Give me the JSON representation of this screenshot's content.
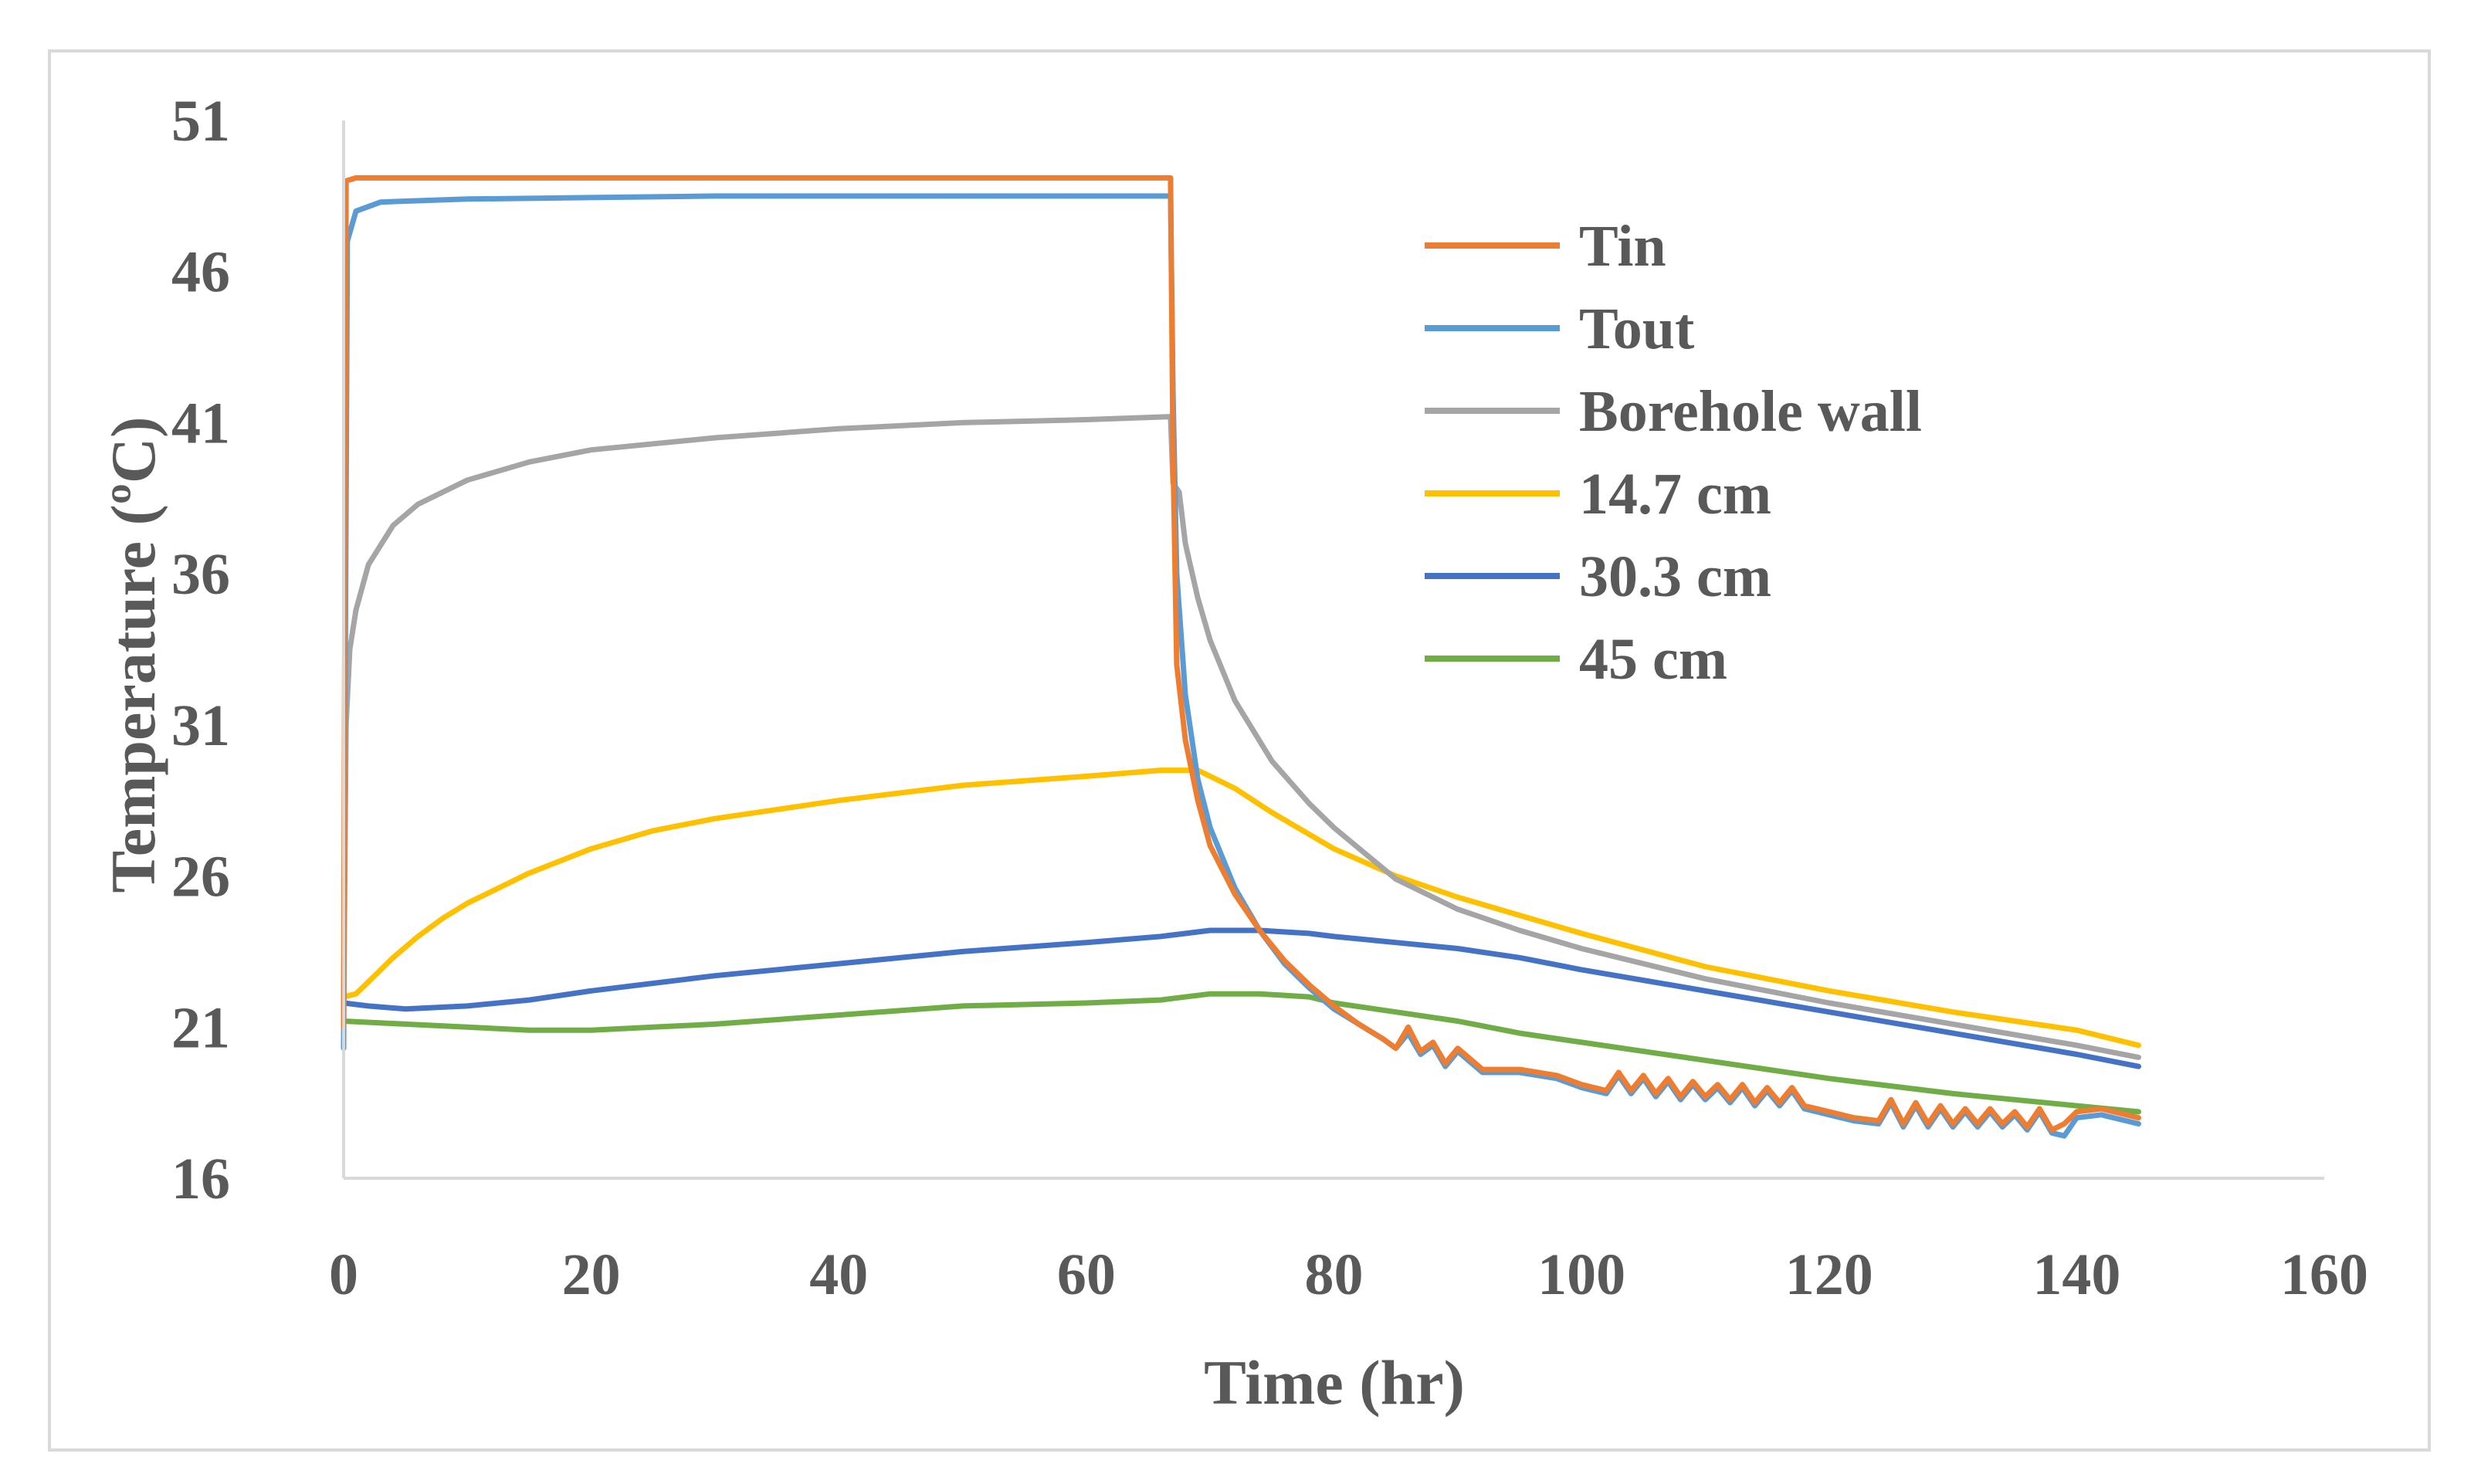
{
  "chart_data": {
    "type": "line",
    "title": "",
    "xlabel": "Time (hr)",
    "ylabel": "Temperature (ºC)",
    "xlim": [
      0,
      160
    ],
    "ylim": [
      16,
      51
    ],
    "xticks": [
      0,
      20,
      40,
      60,
      80,
      100,
      120,
      140,
      160
    ],
    "yticks": [
      16,
      21,
      26,
      31,
      36,
      41,
      46,
      51
    ],
    "xtick_labels": [
      "0",
      "20",
      "40",
      "60",
      "80",
      "100",
      "120",
      "140",
      "160"
    ],
    "ytick_labels": [
      "16",
      "21",
      "26",
      "31",
      "36",
      "41",
      "46",
      "51"
    ],
    "legend_position": "top-right",
    "grid": false,
    "series": [
      {
        "name": "Tin",
        "color": "#ed7d31",
        "x": [
          0,
          0.2,
          1,
          10,
          30,
          50,
          66.8,
          67,
          67.3,
          68,
          69,
          70,
          72,
          74,
          76,
          78,
          80,
          82,
          84,
          85,
          86,
          87,
          88,
          89,
          90,
          92,
          95,
          98,
          100,
          102,
          103,
          104,
          105,
          106,
          107,
          108,
          109,
          110,
          111,
          112,
          113,
          114,
          115,
          116,
          117,
          118,
          119,
          120,
          122,
          124,
          125,
          126,
          127,
          128,
          129,
          130,
          131,
          132,
          133,
          134,
          135,
          136,
          137,
          138,
          139,
          140,
          142,
          145
        ],
        "y": [
          21,
          49,
          49.1,
          49.1,
          49.1,
          49.1,
          49.1,
          40,
          33,
          30.5,
          28.5,
          27,
          25.4,
          24.2,
          23.2,
          22.4,
          21.7,
          21.1,
          20.6,
          20.3,
          21,
          20.2,
          20.5,
          19.8,
          20.3,
          19.6,
          19.6,
          19.4,
          19.1,
          18.9,
          19.5,
          18.9,
          19.4,
          18.8,
          19.3,
          18.7,
          19.2,
          18.7,
          19.1,
          18.6,
          19.1,
          18.5,
          19,
          18.5,
          19,
          18.4,
          18.3,
          18.2,
          18,
          17.9,
          18.6,
          17.8,
          18.5,
          17.8,
          18.4,
          17.8,
          18.3,
          17.8,
          18.3,
          17.8,
          18.2,
          17.7,
          18.3,
          17.6,
          17.8,
          18.2,
          18.3,
          18
        ]
      },
      {
        "name": "Tout",
        "color": "#5b9bd5",
        "x": [
          0,
          0.1,
          0.3,
          1,
          3,
          10,
          30,
          50,
          66.8,
          67,
          67.3,
          68,
          69,
          70,
          72,
          74,
          76,
          78,
          80,
          82,
          84,
          85,
          86,
          87,
          88,
          89,
          90,
          92,
          95,
          98,
          100,
          102,
          103,
          104,
          105,
          106,
          107,
          108,
          109,
          110,
          111,
          112,
          113,
          114,
          115,
          116,
          117,
          118,
          119,
          120,
          122,
          124,
          125,
          126,
          127,
          128,
          129,
          130,
          131,
          132,
          133,
          134,
          135,
          136,
          137,
          138,
          139,
          140,
          142,
          145
        ],
        "y": [
          20.3,
          30,
          47,
          48,
          48.3,
          48.4,
          48.5,
          48.5,
          48.5,
          42,
          36,
          32,
          29.2,
          27.6,
          25.6,
          24.2,
          23.1,
          22.3,
          21.6,
          21.1,
          20.6,
          20.3,
          20.8,
          20.1,
          20.4,
          19.7,
          20.2,
          19.5,
          19.5,
          19.3,
          19,
          18.8,
          19.4,
          18.8,
          19.3,
          18.7,
          19.2,
          18.6,
          19.1,
          18.6,
          19,
          18.5,
          19,
          18.4,
          18.9,
          18.4,
          18.9,
          18.3,
          18.2,
          18.1,
          17.9,
          17.8,
          18.5,
          17.7,
          18.4,
          17.7,
          18.3,
          17.7,
          18.2,
          17.7,
          18.2,
          17.7,
          18.1,
          17.6,
          18.2,
          17.5,
          17.4,
          18,
          18.1,
          17.8
        ]
      },
      {
        "name": "Borehole wall",
        "color": "#a5a5a5",
        "x": [
          0,
          0.2,
          0.5,
          1,
          2,
          4,
          6,
          10,
          15,
          20,
          30,
          40,
          50,
          60,
          66.8,
          67,
          67.5,
          68,
          69,
          70,
          72,
          75,
          78,
          80,
          85,
          90,
          95,
          100,
          110,
          120,
          130,
          140,
          145
        ],
        "y": [
          21.5,
          31,
          33.5,
          34.8,
          36.3,
          37.6,
          38.3,
          39.1,
          39.7,
          40.1,
          40.5,
          40.8,
          41,
          41.1,
          41.2,
          39,
          38.7,
          37,
          35.2,
          33.8,
          31.8,
          29.8,
          28.4,
          27.6,
          25.9,
          24.9,
          24.2,
          23.6,
          22.6,
          21.8,
          21.1,
          20.4,
          20
        ]
      },
      {
        "name": "14.7 cm",
        "color": "#ffc000",
        "x": [
          0,
          1,
          2,
          4,
          6,
          8,
          10,
          15,
          20,
          25,
          30,
          40,
          50,
          60,
          66,
          69,
          70,
          72,
          75,
          80,
          85,
          90,
          95,
          100,
          110,
          120,
          130,
          140,
          145
        ],
        "y": [
          22,
          22.1,
          22.5,
          23.3,
          24,
          24.6,
          25.1,
          26.1,
          26.9,
          27.5,
          27.9,
          28.5,
          29,
          29.3,
          29.5,
          29.5,
          29.3,
          28.9,
          28.1,
          26.9,
          26,
          25.3,
          24.7,
          24.1,
          23,
          22.2,
          21.5,
          20.9,
          20.4
        ]
      },
      {
        "name": "30.3 cm",
        "color": "#4472c4",
        "x": [
          0,
          2,
          5,
          10,
          15,
          20,
          30,
          40,
          50,
          60,
          66,
          70,
          74,
          78,
          80,
          85,
          90,
          95,
          100,
          110,
          120,
          130,
          140,
          145
        ],
        "y": [
          21.8,
          21.7,
          21.6,
          21.7,
          21.9,
          22.2,
          22.7,
          23.1,
          23.5,
          23.8,
          24,
          24.2,
          24.2,
          24.1,
          24,
          23.8,
          23.6,
          23.3,
          22.9,
          22.2,
          21.5,
          20.8,
          20.1,
          19.7
        ]
      },
      {
        "name": "45 cm",
        "color": "#70ad47",
        "x": [
          0,
          5,
          10,
          15,
          20,
          25,
          30,
          40,
          50,
          60,
          66,
          70,
          74,
          78,
          80,
          85,
          90,
          95,
          100,
          110,
          120,
          130,
          140,
          145
        ],
        "y": [
          21.2,
          21.1,
          21,
          20.9,
          20.9,
          21,
          21.1,
          21.4,
          21.7,
          21.8,
          21.9,
          22.1,
          22.1,
          22,
          21.8,
          21.5,
          21.2,
          20.8,
          20.5,
          19.9,
          19.3,
          18.8,
          18.4,
          18.2
        ]
      }
    ]
  }
}
